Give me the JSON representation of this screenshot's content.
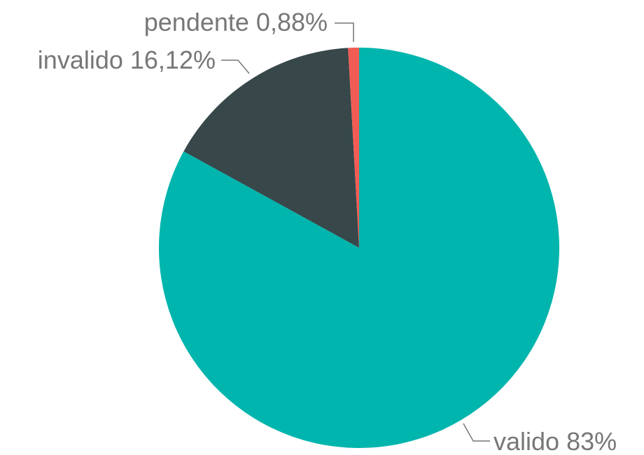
{
  "chart_data": {
    "type": "pie",
    "categories": [
      "valido",
      "invalido",
      "pendente"
    ],
    "values": [
      83,
      16.12,
      0.88
    ],
    "value_labels": [
      "83%",
      "16,12%",
      "0,88%"
    ],
    "colors": [
      "#00b5ad",
      "#37474a",
      "#f25c54"
    ]
  }
}
